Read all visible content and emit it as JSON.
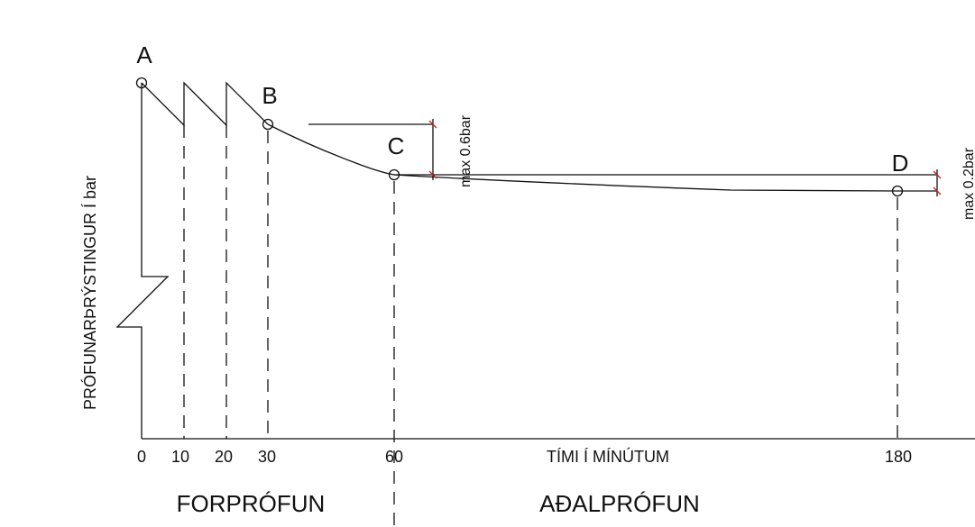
{
  "points": {
    "a": "A",
    "b": "B",
    "c": "C",
    "d": "D"
  },
  "x_ticks": [
    "0",
    "10",
    "20",
    "30",
    "60",
    "180"
  ],
  "x_axis_title": "TÍMI Í MÍNÚTUM",
  "y_axis_title": "PRÓFUNARÞRÝSTINGUR Í bar",
  "phases": {
    "pre_test": "FORPRÓFUN",
    "main_test": "AÐALPRÓFUN"
  },
  "dimensions": {
    "b_to_c": "max 0.6bar",
    "c_to_d": "max 0.2bar"
  },
  "colors": {
    "line": "#111111",
    "dimension_tick": "#d62020"
  }
}
